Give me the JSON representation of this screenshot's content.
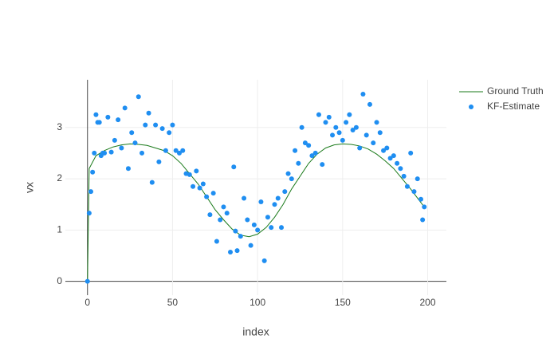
{
  "chart_data": {
    "type": "scatter",
    "xlabel": "index",
    "ylabel": "vx",
    "xlim": [
      -13,
      211
    ],
    "ylim": [
      -0.27,
      3.93
    ],
    "xticks": [
      0,
      50,
      100,
      150,
      200
    ],
    "yticks": [
      0,
      1,
      2,
      3
    ],
    "grid": true,
    "legend": "top-right",
    "series": [
      {
        "name": "Ground Truth",
        "color": "#1a7a1a",
        "mode": "line",
        "x": [
          0,
          1,
          5,
          10,
          15,
          20,
          25,
          30,
          35,
          40,
          45,
          50,
          55,
          60,
          65,
          70,
          75,
          80,
          85,
          90,
          95,
          100,
          105,
          110,
          115,
          120,
          125,
          130,
          135,
          140,
          145,
          150,
          155,
          160,
          165,
          170,
          175,
          180,
          185,
          190,
          195,
          198
        ],
        "values": [
          0,
          2.2,
          2.45,
          2.55,
          2.62,
          2.66,
          2.68,
          2.67,
          2.65,
          2.6,
          2.55,
          2.45,
          2.3,
          2.1,
          1.9,
          1.65,
          1.4,
          1.2,
          1.02,
          0.9,
          0.87,
          0.92,
          1.05,
          1.25,
          1.5,
          1.8,
          2.05,
          2.3,
          2.48,
          2.6,
          2.66,
          2.68,
          2.67,
          2.64,
          2.58,
          2.48,
          2.35,
          2.2,
          2.0,
          1.8,
          1.58,
          1.45
        ]
      },
      {
        "name": "KF-Estimate",
        "color": "#1f8ef1",
        "mode": "markers",
        "x": [
          0,
          1,
          2,
          3,
          4,
          5,
          6,
          7,
          8,
          9,
          10,
          12,
          14,
          16,
          18,
          20,
          22,
          24,
          26,
          28,
          30,
          32,
          34,
          36,
          38,
          40,
          42,
          44,
          46,
          48,
          50,
          52,
          54,
          56,
          58,
          60,
          62,
          64,
          66,
          68,
          70,
          72,
          74,
          76,
          78,
          80,
          82,
          84,
          86,
          87,
          88,
          90,
          92,
          94,
          96,
          98,
          100,
          102,
          104,
          106,
          108,
          110,
          112,
          114,
          116,
          118,
          120,
          122,
          124,
          126,
          128,
          130,
          132,
          134,
          136,
          138,
          140,
          142,
          144,
          146,
          148,
          150,
          152,
          154,
          156,
          158,
          160,
          162,
          164,
          166,
          168,
          170,
          172,
          174,
          176,
          178,
          180,
          182,
          184,
          186,
          188,
          190,
          192,
          194,
          196,
          197,
          198
        ],
        "values": [
          0,
          1.33,
          1.75,
          2.13,
          2.5,
          3.25,
          3.1,
          3.1,
          2.45,
          2.5,
          2.5,
          3.2,
          2.52,
          2.75,
          3.15,
          2.6,
          3.38,
          2.2,
          2.9,
          2.7,
          3.6,
          2.5,
          3.05,
          3.28,
          1.93,
          3.05,
          2.33,
          2.98,
          2.55,
          2.9,
          3.05,
          2.55,
          2.5,
          2.55,
          2.1,
          2.08,
          1.85,
          2.15,
          1.82,
          1.9,
          1.65,
          1.3,
          1.72,
          0.78,
          1.2,
          1.45,
          1.33,
          0.57,
          2.23,
          0.98,
          0.6,
          0.88,
          1.62,
          1.2,
          0.7,
          1.1,
          1.0,
          1.55,
          0.4,
          1.25,
          1.05,
          1.5,
          1.62,
          1.05,
          1.75,
          2.1,
          2.0,
          2.55,
          2.3,
          3.0,
          2.7,
          2.65,
          2.45,
          2.5,
          3.25,
          2.28,
          3.1,
          3.2,
          2.85,
          3.0,
          2.9,
          2.75,
          3.1,
          3.25,
          2.95,
          3.0,
          2.6,
          3.65,
          2.85,
          3.45,
          2.7,
          3.1,
          2.9,
          2.55,
          2.6,
          2.4,
          2.45,
          2.3,
          2.2,
          2.05,
          1.85,
          2.5,
          1.75,
          2.0,
          1.6,
          1.2,
          1.45
        ]
      }
    ]
  }
}
